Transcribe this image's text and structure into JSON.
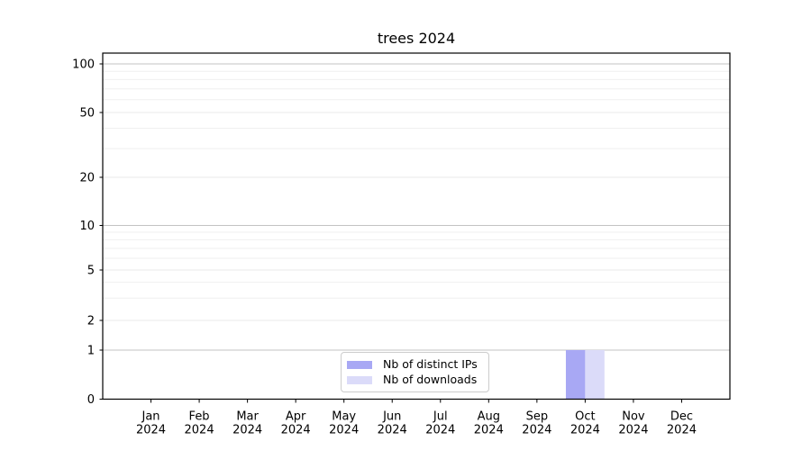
{
  "chart_data": {
    "type": "bar",
    "title": "trees 2024",
    "x_axis": {
      "months": [
        "Jan",
        "Feb",
        "Mar",
        "Apr",
        "May",
        "Jun",
        "Jul",
        "Aug",
        "Sep",
        "Oct",
        "Nov",
        "Dec"
      ],
      "year": "2024"
    },
    "y_axis": {
      "scale": "symlog",
      "tick_values": [
        0,
        1,
        2,
        5,
        10,
        20,
        50,
        100
      ],
      "minor_tick_values": [
        3,
        4,
        6,
        7,
        8,
        9,
        30,
        40,
        60,
        70,
        80,
        90
      ],
      "ylim": [
        0,
        115
      ]
    },
    "series": [
      {
        "name": "Nb of distinct IPs",
        "color": "#a8a8f4",
        "values": [
          0,
          0,
          0,
          0,
          0,
          0,
          0,
          0,
          0,
          1,
          0,
          0
        ]
      },
      {
        "name": "Nb of downloads",
        "color": "#dbdbf9",
        "values": [
          0,
          0,
          0,
          0,
          0,
          0,
          0,
          0,
          0,
          1,
          0,
          0
        ]
      }
    ],
    "legend_position": "lower center",
    "grid": true
  },
  "colors": {
    "background": "#ffffff",
    "axis": "#000000",
    "grid_decade": "#c3c3c3",
    "grid_mid": "#e9e9e9",
    "grid_minor": "#efefef",
    "legend_border": "#cccccc",
    "text": "#000000"
  }
}
